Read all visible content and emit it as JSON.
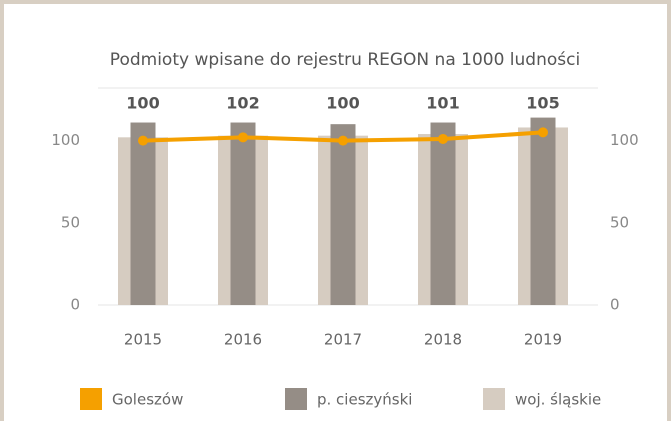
{
  "chart_data": {
    "type": "bar",
    "title": "Podmioty wpisane do rejestru REGON na 1000 ludności",
    "categories": [
      "2015",
      "2016",
      "2017",
      "2018",
      "2019"
    ],
    "series": [
      {
        "name": "Goleszów",
        "color": "#f5a000",
        "type": "line",
        "axis": "y",
        "values": [
          100,
          102,
          100,
          101,
          105
        ]
      },
      {
        "name": "p. cieszyński",
        "color": "#958d86",
        "type": "bar",
        "axis": "y2",
        "values": [
          111,
          111,
          110,
          111,
          114
        ]
      },
      {
        "name": "woj. śląskie",
        "color": "#d6ccc1",
        "type": "bar",
        "axis": "y2",
        "values": [
          102,
          103,
          103,
          104,
          108
        ]
      }
    ],
    "ylim": [
      0,
      132
    ],
    "yticks": [
      0,
      50,
      100
    ],
    "y2lim": [
      0,
      132
    ],
    "y2ticks": [
      0,
      50,
      100
    ],
    "legend": "bottom"
  }
}
